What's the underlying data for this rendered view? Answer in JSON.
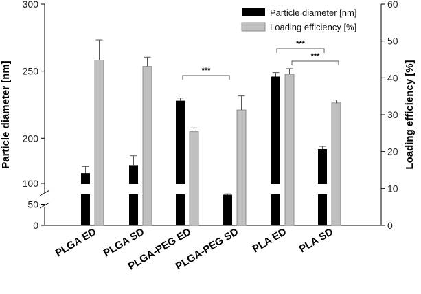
{
  "chart_data": {
    "type": "bar",
    "categories": [
      "PLGA ED",
      "PLGA SD",
      "PLGA-PEG ED",
      "PLGA-PEG SD",
      "PLA ED",
      "PLA SD"
    ],
    "series": [
      {
        "name": "Particle diameter [nm]",
        "axis": "left",
        "color": "#000000",
        "values": [
          174,
          180,
          228,
          73,
          246,
          192
        ],
        "errors": [
          5,
          7,
          2,
          2,
          3,
          2
        ]
      },
      {
        "name": "Loading efficiency [%]",
        "axis": "right",
        "color": "#c0c0c0",
        "values": [
          44.8,
          43.1,
          25.4,
          31.3,
          41.0,
          33.2
        ],
        "errors": [
          5.5,
          2.5,
          1.0,
          3.8,
          1.5,
          0.8
        ]
      }
    ],
    "ylabel_left": "Particle diameter [nm]",
    "ylabel_right": "Loading efficiency [%]",
    "yticks_left": [
      "0",
      "50",
      "100",
      "200",
      "250",
      "300"
    ],
    "yticks_right": [
      "0",
      "10",
      "20",
      "30",
      "40",
      "50",
      "60"
    ],
    "ylim_right": [
      0,
      60
    ],
    "axis_break": "left axis broken between 100 and 150",
    "legend_position": "top-right",
    "annotations": [
      {
        "text": "***",
        "between": [
          "PLGA-PEG ED",
          "PLGA-PEG SD"
        ]
      },
      {
        "text": "***",
        "between": [
          "PLA ED",
          "PLA SD"
        ]
      },
      {
        "text": "***",
        "between": [
          "PLA ED",
          "PLA SD"
        ]
      }
    ]
  }
}
